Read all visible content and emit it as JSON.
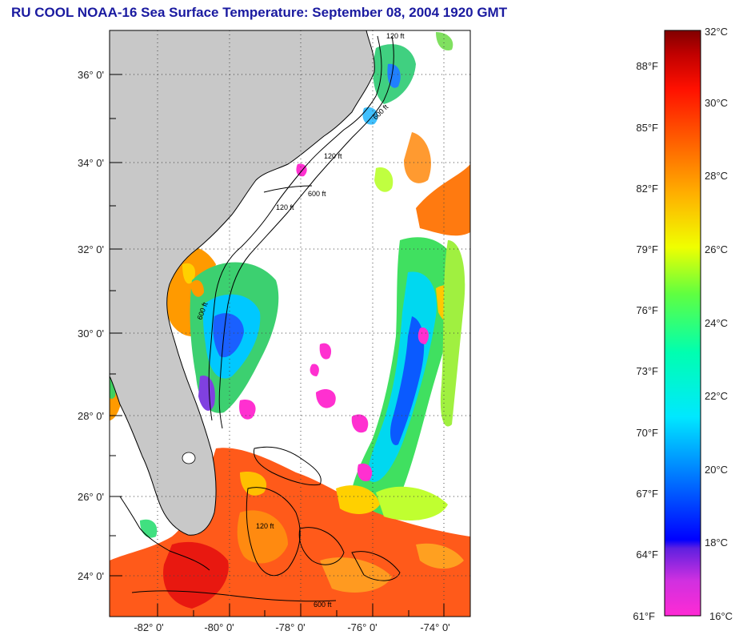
{
  "title": "RU COOL  NOAA-16  Sea Surface Temperature:  September 08, 2004 1920 GMT",
  "map": {
    "lat_labels": [
      "36° 0'",
      "34° 0'",
      "32° 0'",
      "30° 0'",
      "28° 0'",
      "26° 0'",
      "24° 0'"
    ],
    "lon_labels": [
      "-82° 0'",
      "-80° 0'",
      "-78° 0'",
      "-76° 0'",
      "-74° 0'"
    ],
    "contour_labels": [
      "120 ft",
      "600 ft",
      "120 ft",
      "600 ft",
      "120 ft",
      "600 ft",
      "120 ft",
      "600 ft"
    ],
    "colors": {
      "land": "#c8c8c8",
      "ocean_no_data": "#ffffff",
      "grid": "#444444"
    }
  },
  "colorbar": {
    "f_labels": [
      "88°F",
      "85°F",
      "82°F",
      "79°F",
      "76°F",
      "73°F",
      "70°F",
      "67°F",
      "64°F",
      "61°F"
    ],
    "c_labels": [
      "32°C",
      "30°C",
      "28°C",
      "26°C",
      "24°C",
      "22°C",
      "20°C",
      "18°C",
      "16°C"
    ],
    "range_c": [
      16,
      32
    ],
    "stops": [
      "#ff2ad4",
      "#b030e0",
      "#5030e0",
      "#0000ff",
      "#0070ff",
      "#00d0ff",
      "#00ffc0",
      "#40ff60",
      "#a0ff20",
      "#ffff00",
      "#ffb000",
      "#ff7000",
      "#ff2000",
      "#e00000",
      "#800000"
    ]
  }
}
